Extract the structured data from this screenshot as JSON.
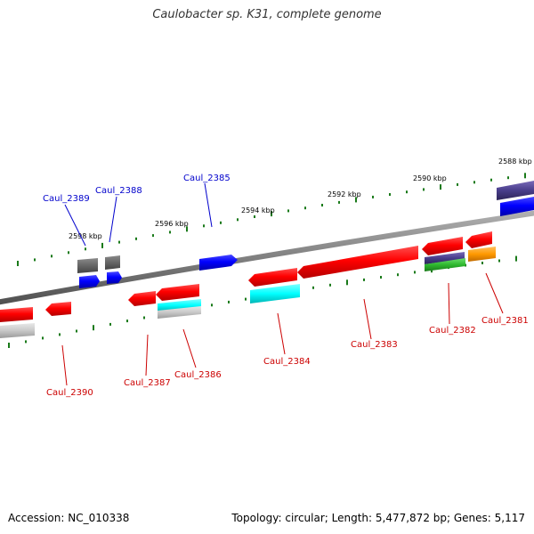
{
  "title": "Caulobacter sp. K31, complete genome",
  "footer": {
    "accession": "Accession: NC_010338",
    "summary": "Topology: circular; Length: 5,477,872 bp; Genes: 5,117"
  },
  "colors": {
    "backbone": "#808080",
    "tick": "#1a7a1a",
    "label_forward": "#0000cc",
    "label_reverse": "#cc0000"
  },
  "kbp_ticks": [
    "2588 kbp",
    "2590 kbp",
    "2592 kbp",
    "2594 kbp",
    "2596 kbp",
    "2598 kbp"
  ],
  "gene_labels": [
    {
      "text": "Caul_2389",
      "strand": "forward"
    },
    {
      "text": "Caul_2388",
      "strand": "forward"
    },
    {
      "text": "Caul_2385",
      "strand": "forward"
    },
    {
      "text": "Caul_2390",
      "strand": "reverse"
    },
    {
      "text": "Caul_2387",
      "strand": "reverse"
    },
    {
      "text": "Caul_2386",
      "strand": "reverse"
    },
    {
      "text": "Caul_2384",
      "strand": "reverse"
    },
    {
      "text": "Caul_2383",
      "strand": "reverse"
    },
    {
      "text": "Caul_2382",
      "strand": "reverse"
    },
    {
      "text": "Caul_2381",
      "strand": "reverse"
    }
  ]
}
